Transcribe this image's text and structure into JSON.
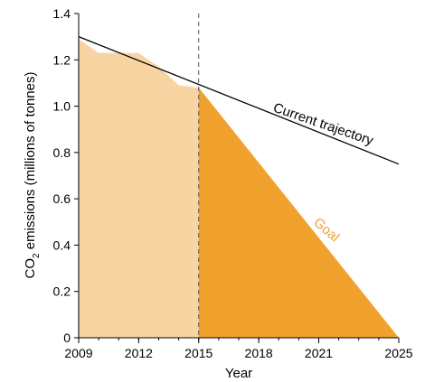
{
  "chart_data": {
    "type": "area",
    "title": "",
    "xlabel": "Year",
    "ylabel": {
      "prefix": "CO",
      "subscript": "2",
      "suffix": " emissions (millions of tonnes)"
    },
    "xlim": [
      2009,
      2025
    ],
    "ylim": [
      0,
      1.4
    ],
    "x_ticks": [
      2009,
      2012,
      2015,
      2018,
      2021,
      2025
    ],
    "x_tick_labels": [
      "2009",
      "2012",
      "2015",
      "2018",
      "2021",
      "2025"
    ],
    "y_ticks": [
      0,
      0.2,
      0.4,
      0.6,
      0.8,
      1.0,
      1.2,
      1.4
    ],
    "y_tick_labels": [
      "0",
      "0.2",
      "0.4",
      "0.6",
      "0.8",
      "1.0",
      "1.2",
      "1.4"
    ],
    "grid": false,
    "reference_line": {
      "x": 2015,
      "style": "dashed"
    },
    "series": [
      {
        "name": "",
        "kind": "area",
        "color": "#f8d4a3",
        "x": [
          2009,
          2010,
          2011,
          2012,
          2013,
          2014,
          2015
        ],
        "y": [
          1.29,
          1.23,
          1.23,
          1.23,
          1.17,
          1.09,
          1.08
        ]
      },
      {
        "name": "Goal",
        "kind": "area",
        "color": "#f0a12e",
        "x": [
          2015,
          2025
        ],
        "y": [
          1.08,
          0.0
        ]
      },
      {
        "name": "Current trajectory",
        "kind": "line",
        "color": "#000000",
        "x": [
          2009,
          2025
        ],
        "y": [
          1.3,
          0.75
        ]
      }
    ],
    "annotations": [
      {
        "text": "Current trajectory",
        "color": "#000000"
      },
      {
        "text": "Goal",
        "color": "#f0a12e"
      }
    ]
  }
}
